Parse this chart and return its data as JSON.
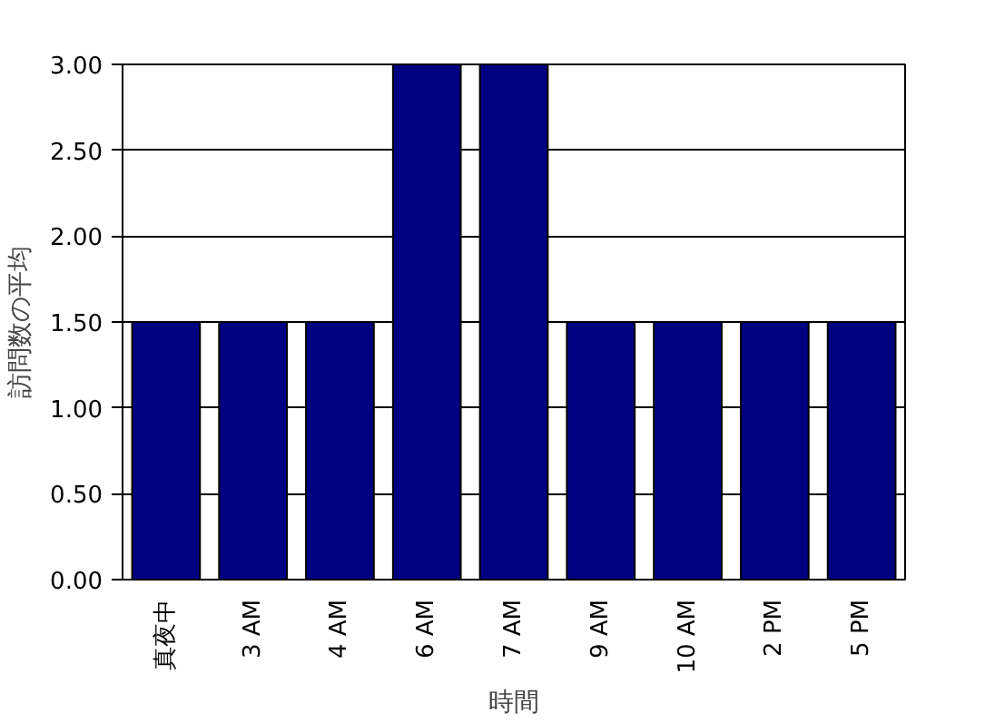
{
  "chart_data": {
    "type": "bar",
    "xlabel": "時間",
    "ylabel": "訪問数の平均",
    "categories": [
      "真夜中",
      "3 AM",
      "4 AM",
      "6 AM",
      "7 AM",
      "9 AM",
      "10 AM",
      "2 PM",
      "5 PM"
    ],
    "values": [
      1.5,
      1.5,
      1.5,
      3.0,
      3.0,
      1.5,
      1.5,
      1.5,
      1.5
    ],
    "color": "#000080",
    "ylim": [
      0,
      3
    ],
    "yticks": [
      {
        "value": 0,
        "label": "0.00"
      },
      {
        "value": 0.5,
        "label": "0.50"
      },
      {
        "value": 1,
        "label": "1.00"
      },
      {
        "value": 1.5,
        "label": "1.50"
      },
      {
        "value": 2,
        "label": "2.00"
      },
      {
        "value": 2.5,
        "label": "2.50"
      },
      {
        "value": 3,
        "label": "3.00"
      }
    ],
    "grid": "y"
  }
}
